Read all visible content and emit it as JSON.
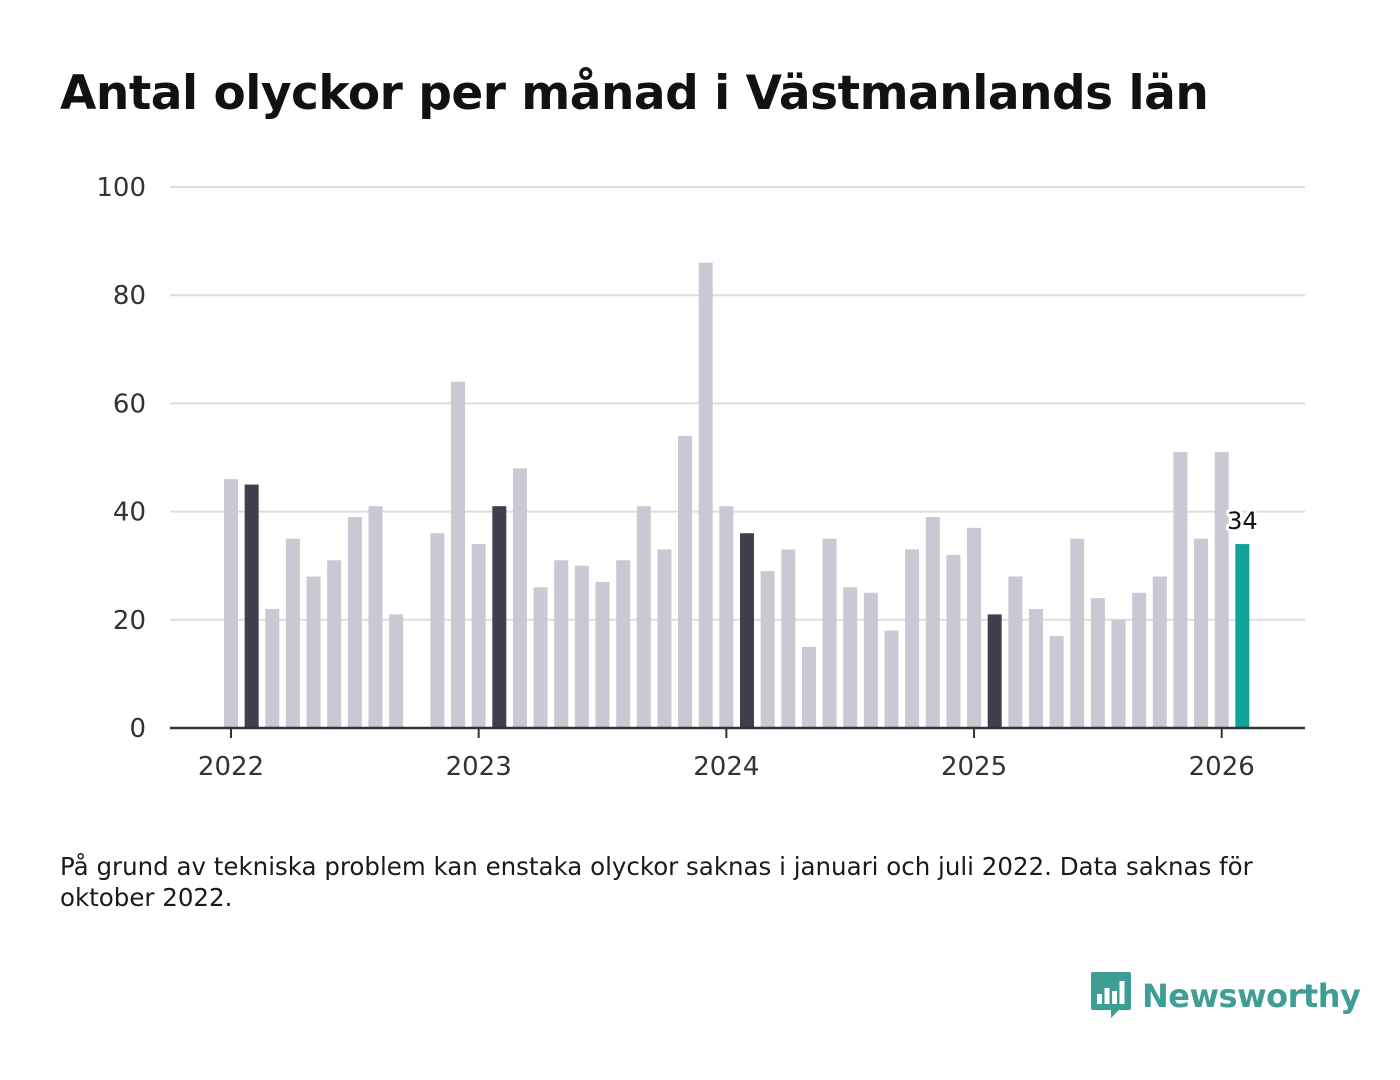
{
  "title": "Antal olyckor per månad i Västmanlands län",
  "note": "På grund av tekniska problem kan enstaka olyckor saknas i januari och juli 2022. Data saknas för oktober 2022.",
  "brand": {
    "name": "Newsworthy",
    "icon": "newsworthy-logo-icon",
    "color": "#3e9e95"
  },
  "colors": {
    "bar": "#c9c8d3",
    "highlight": "#40404d",
    "latest": "#11a39a",
    "grid": "#dddddd",
    "axis": "#333333"
  },
  "chart_data": {
    "type": "bar",
    "title": "Antal olyckor per månad i Västmanlands län",
    "xlabel": "",
    "ylabel": "",
    "ylim": [
      0,
      100
    ],
    "yticks": [
      0,
      20,
      40,
      60,
      80,
      100
    ],
    "xtick_labels": [
      "2022",
      "2023",
      "2024",
      "2025",
      "2026"
    ],
    "grid": true,
    "categories": [
      "2022-01",
      "2022-02",
      "2022-03",
      "2022-04",
      "2022-05",
      "2022-06",
      "2022-07",
      "2022-08",
      "2022-09",
      "2022-10",
      "2022-11",
      "2022-12",
      "2023-01",
      "2023-02",
      "2023-03",
      "2023-04",
      "2023-05",
      "2023-06",
      "2023-07",
      "2023-08",
      "2023-09",
      "2023-10",
      "2023-11",
      "2023-12",
      "2024-01",
      "2024-02",
      "2024-03",
      "2024-04",
      "2024-05",
      "2024-06",
      "2024-07",
      "2024-08",
      "2024-09",
      "2024-10",
      "2024-11",
      "2024-12",
      "2025-01",
      "2025-02",
      "2025-03",
      "2025-04",
      "2025-05",
      "2025-06",
      "2025-07",
      "2025-08",
      "2025-09",
      "2025-10",
      "2025-11",
      "2025-12",
      "2026-01",
      "2026-02"
    ],
    "values": [
      46,
      45,
      22,
      35,
      28,
      31,
      39,
      41,
      21,
      null,
      36,
      64,
      34,
      41,
      48,
      26,
      31,
      30,
      27,
      31,
      41,
      33,
      54,
      86,
      41,
      36,
      29,
      33,
      15,
      35,
      26,
      25,
      18,
      33,
      39,
      32,
      37,
      21,
      28,
      22,
      17,
      35,
      24,
      20,
      25,
      28,
      51,
      35,
      51,
      34
    ],
    "highlight_indices": [
      1,
      13,
      25,
      37
    ],
    "latest_index": 49,
    "latest_label": "34"
  }
}
